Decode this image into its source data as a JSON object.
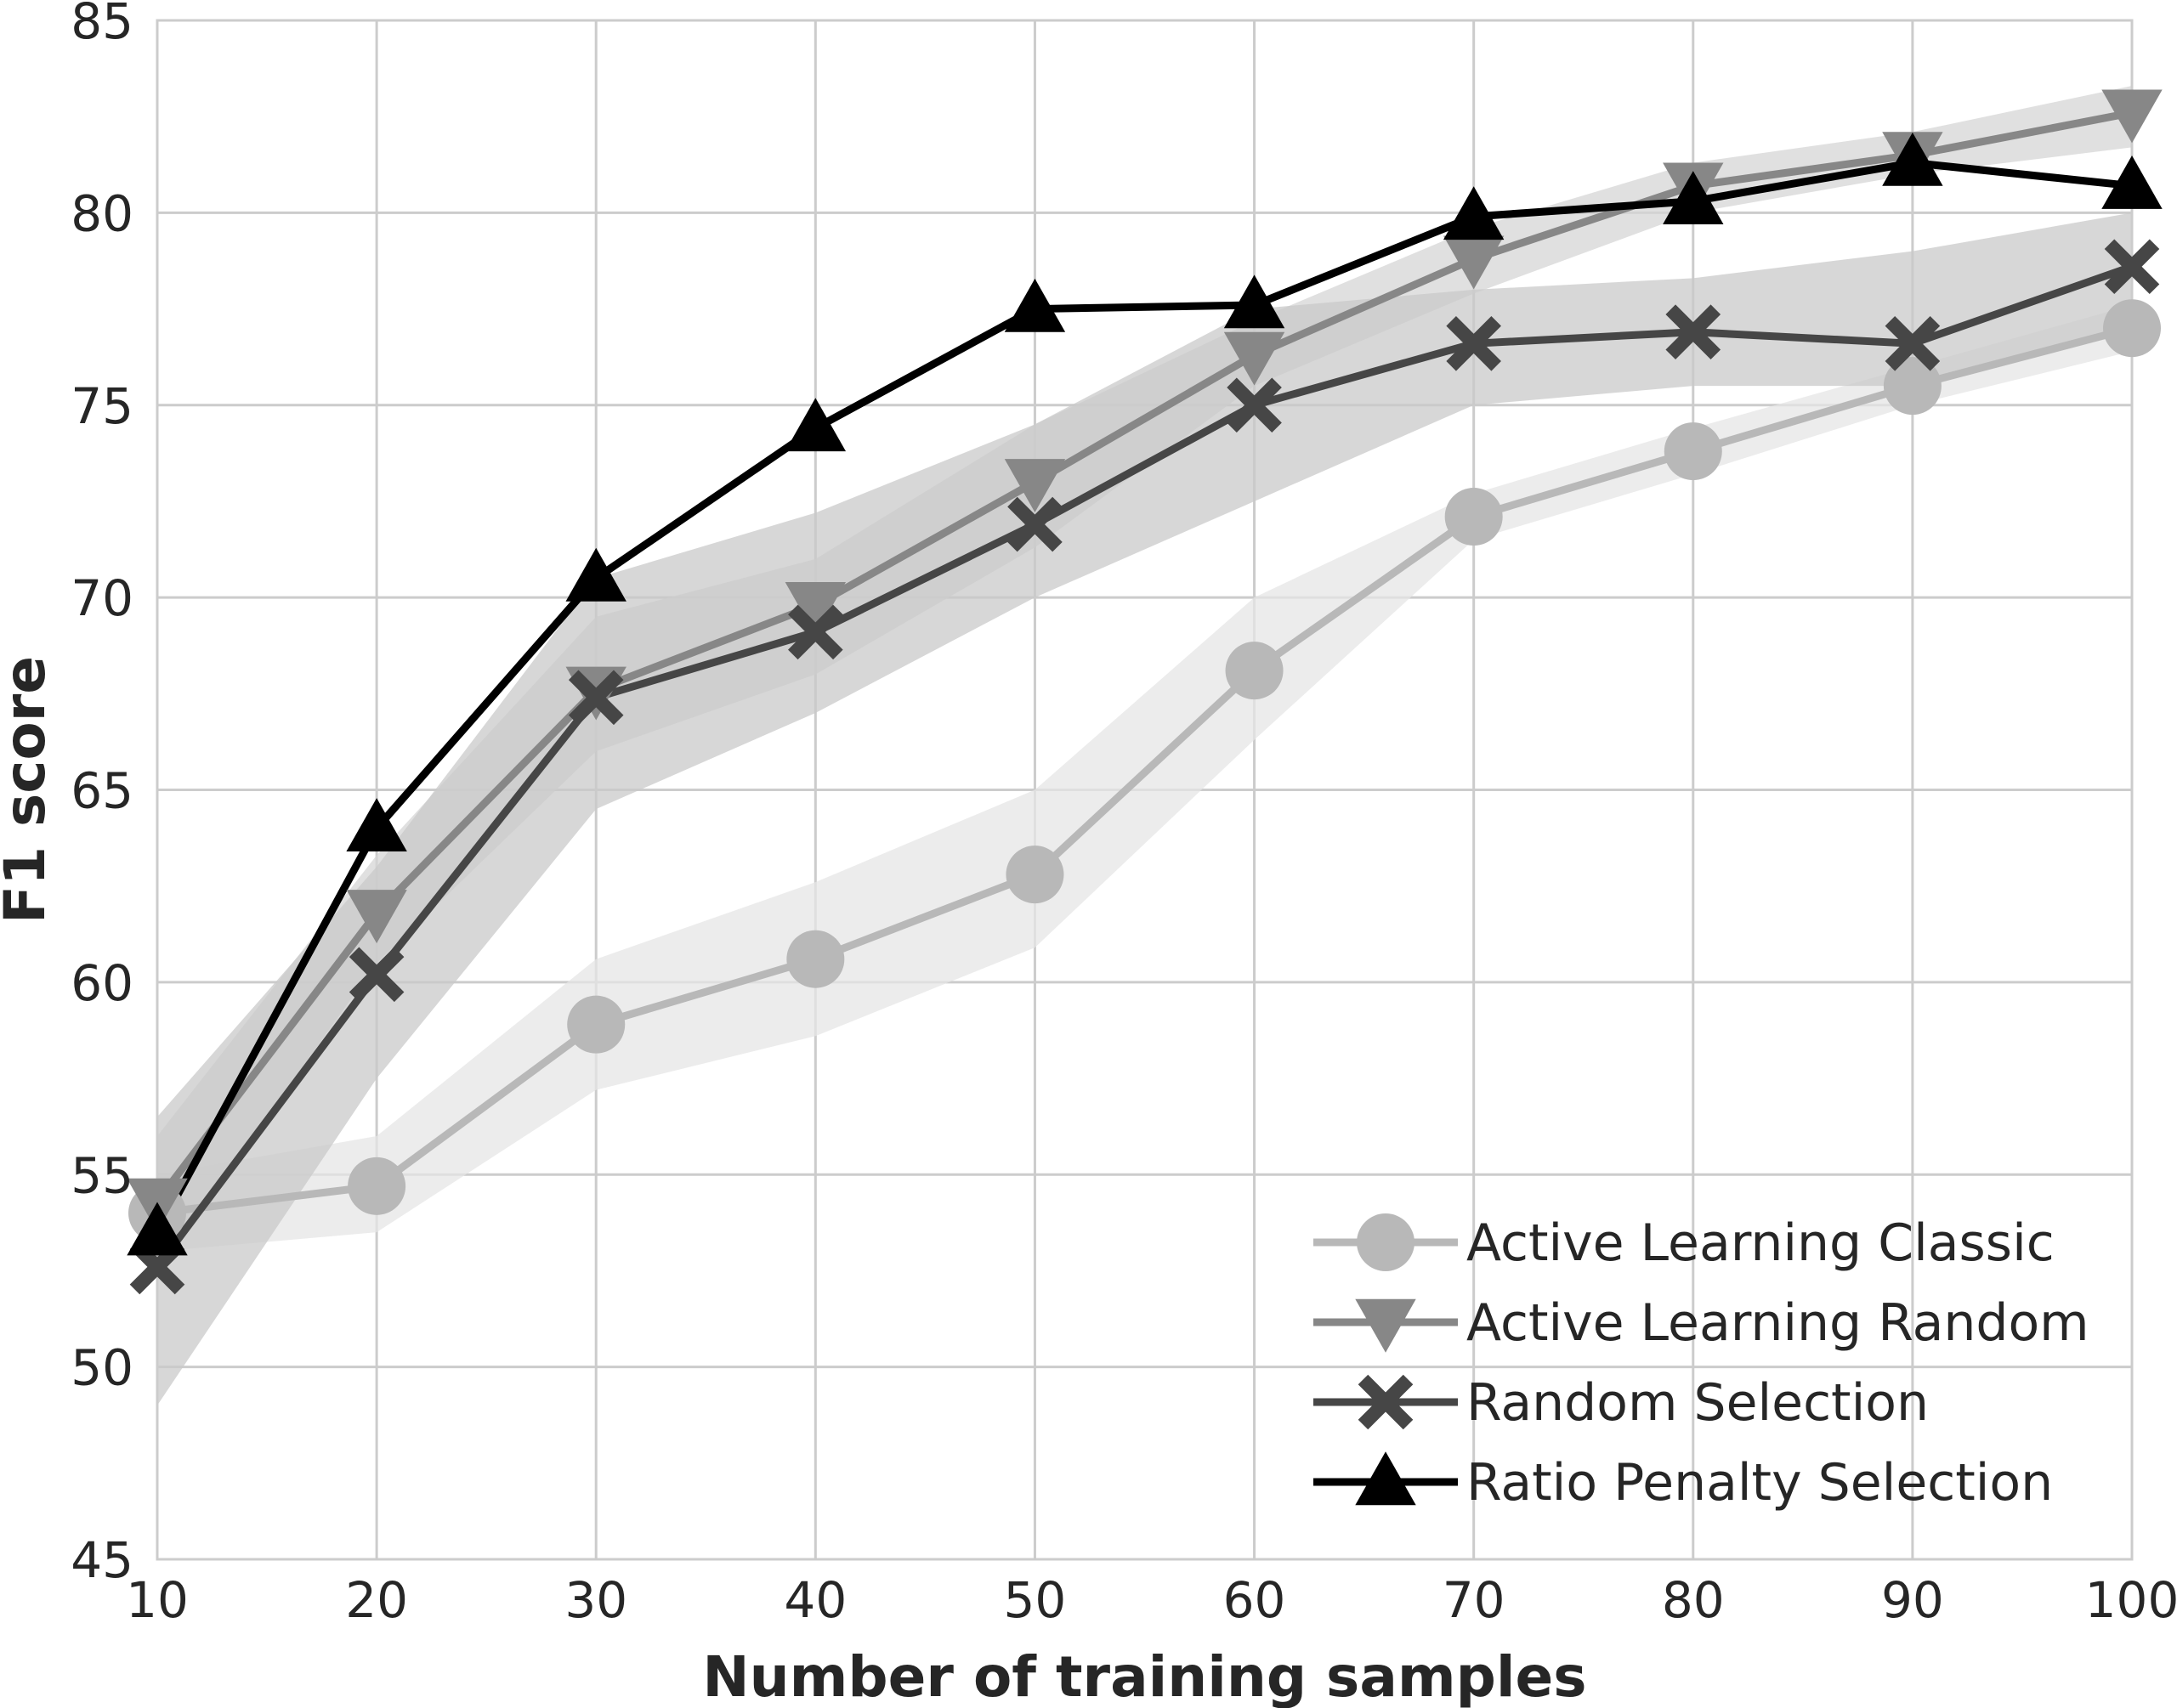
{
  "chart_data": {
    "type": "line",
    "title": "",
    "xlabel": "Number of training samples",
    "ylabel": "F1 score",
    "xlim": [
      10,
      100
    ],
    "ylim": [
      45,
      85
    ],
    "xticks": [
      10,
      20,
      30,
      40,
      50,
      60,
      70,
      80,
      90,
      100
    ],
    "yticks": [
      45,
      50,
      55,
      60,
      65,
      70,
      75,
      80,
      85
    ],
    "grid": true,
    "legend_position": "bottom-right",
    "x": [
      10,
      20,
      30,
      40,
      50,
      60,
      70,
      80,
      90,
      100
    ],
    "series": [
      {
        "name": "Active Learning Classic",
        "marker": "circle",
        "color": "#b8b8b8",
        "band_color": "#e6e6e6",
        "values": [
          54.0,
          54.7,
          58.9,
          60.6,
          62.8,
          68.1,
          72.1,
          73.8,
          75.5,
          77.0
        ],
        "lower": [
          53.0,
          53.5,
          57.2,
          58.6,
          60.9,
          66.3,
          71.5,
          73.2,
          75.0,
          76.4
        ],
        "upper": [
          55.0,
          56.0,
          60.6,
          62.6,
          65.0,
          70.0,
          72.7,
          74.4,
          76.0,
          77.6
        ]
      },
      {
        "name": "Active Learning Random",
        "marker": "triangle-down",
        "color": "#878787",
        "band_color": "#d5d5d5",
        "values": [
          54.3,
          61.8,
          67.6,
          69.8,
          73.0,
          76.3,
          78.8,
          80.7,
          81.5,
          82.6
        ],
        "lower": [
          52.5,
          60.5,
          66.0,
          68.0,
          71.3,
          75.5,
          77.9,
          80.0,
          81.0,
          81.7
        ],
        "upper": [
          56.0,
          63.3,
          69.5,
          71.0,
          74.5,
          77.2,
          79.6,
          81.3,
          82.1,
          83.3
        ]
      },
      {
        "name": "Random Selection",
        "marker": "x",
        "color": "#464646",
        "band_color": "#c9c9c9",
        "values": [
          52.6,
          60.2,
          67.4,
          69.1,
          71.9,
          75.0,
          76.6,
          76.9,
          76.6,
          78.6
        ],
        "lower": [
          49.0,
          57.5,
          64.5,
          67.0,
          70.0,
          72.5,
          75.0,
          75.5,
          75.5,
          77.0
        ],
        "upper": [
          56.5,
          63.0,
          70.5,
          72.2,
          74.5,
          77.5,
          78.0,
          78.3,
          79.0,
          80.0
        ]
      },
      {
        "name": "Ratio Penalty Selection",
        "marker": "triangle-up",
        "color": "#000000",
        "values": [
          53.5,
          64.0,
          70.5,
          74.4,
          77.5,
          77.6,
          79.9,
          80.3,
          81.3,
          80.7
        ]
      }
    ]
  }
}
